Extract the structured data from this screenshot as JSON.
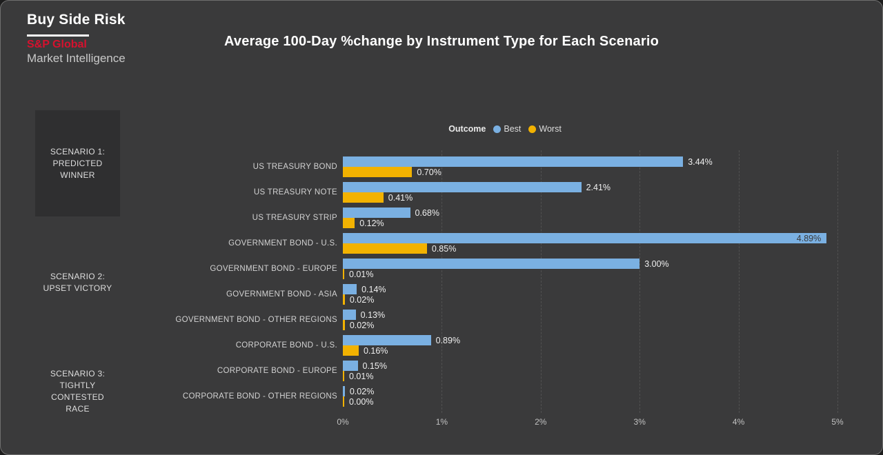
{
  "branding": {
    "app_title": "Buy Side Risk",
    "brand_name": "S&P Global",
    "brand_sub": "Market Intelligence",
    "brand_color": "#d6112e"
  },
  "legend": {
    "label": "Outcome",
    "items": [
      {
        "name": "Best",
        "color": "#7ab0e2"
      },
      {
        "name": "Worst",
        "color": "#f2b201"
      }
    ]
  },
  "scenarios": [
    {
      "label": "SCENARIO 1:\nPREDICTED\nWINNER",
      "highlighted": true
    },
    {
      "label": "SCENARIO 2:\nUPSET VICTORY",
      "highlighted": false
    },
    {
      "label": "SCENARIO 3:\nTIGHTLY\nCONTESTED\nRACE",
      "highlighted": false
    }
  ],
  "chart_data": {
    "type": "bar",
    "orientation": "horizontal",
    "title": "Average 100-Day %change by Instrument Type for Each Scenario",
    "categories": [
      "US TREASURY BOND",
      "US TREASURY NOTE",
      "US TREASURY STRIP",
      "GOVERNMENT BOND - U.S.",
      "GOVERNMENT BOND - EUROPE",
      "GOVERNMENT BOND - ASIA",
      "GOVERNMENT BOND - OTHER REGIONS",
      "CORPORATE BOND - U.S.",
      "CORPORATE BOND - EUROPE",
      "CORPORATE BOND - OTHER REGIONS"
    ],
    "series": [
      {
        "name": "Best",
        "color": "#7ab0e2",
        "values": [
          3.44,
          2.41,
          0.68,
          4.89,
          3.0,
          0.14,
          0.13,
          0.89,
          0.15,
          0.02
        ]
      },
      {
        "name": "Worst",
        "color": "#f2b201",
        "values": [
          0.7,
          0.41,
          0.12,
          0.85,
          0.01,
          0.02,
          0.02,
          0.16,
          0.01,
          0.0
        ]
      }
    ],
    "value_labels": true,
    "value_format": "0.00%",
    "xlim": [
      0,
      5
    ],
    "xticks": [
      "0%",
      "1%",
      "2%",
      "3%",
      "4%",
      "5%"
    ],
    "grid": "vertical-dashed",
    "legend_position": "top-center",
    "legend_title": "Outcome"
  }
}
